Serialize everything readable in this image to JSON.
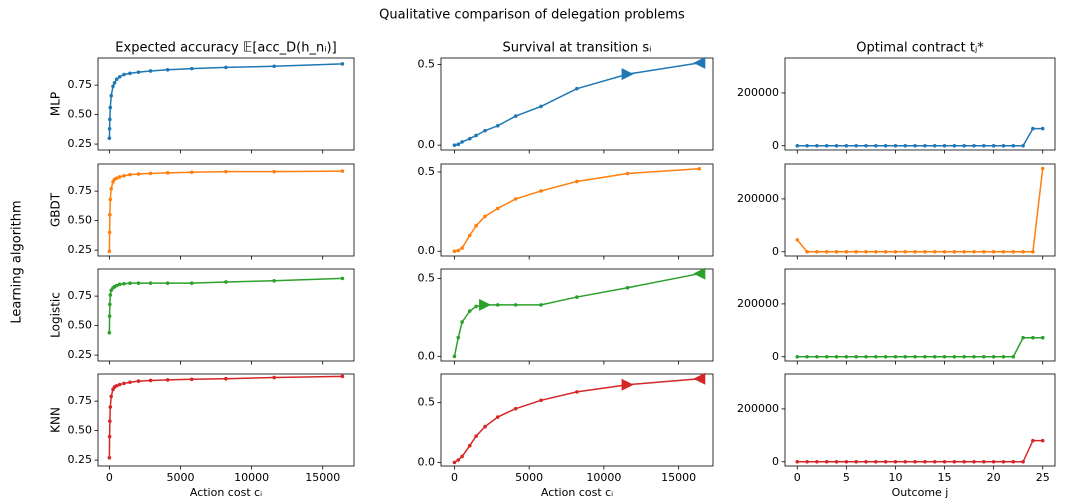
{
  "title": "Qualitative comparison of delegation problems",
  "ylabel": "Learning algorithm",
  "chart_data": [
    {
      "type": "line",
      "title": "Expected accuracy 𝔼[acc_D(h_nᵢ)]",
      "ylabel": "MLP",
      "color": "#1f77b4",
      "x": [
        0,
        16,
        32,
        64,
        128,
        256,
        362,
        512,
        724,
        1024,
        1448,
        2048,
        2896,
        4096,
        5793,
        8192,
        11585,
        16384
      ],
      "values": [
        0.3,
        0.38,
        0.46,
        0.56,
        0.66,
        0.74,
        0.77,
        0.8,
        0.82,
        0.84,
        0.85,
        0.86,
        0.87,
        0.88,
        0.89,
        0.9,
        0.91,
        0.93
      ],
      "xlim": [
        -800,
        17200
      ],
      "ylim": [
        0.2,
        0.98
      ],
      "xticks": [
        0,
        5000,
        10000,
        15000
      ],
      "show_xtick_labels": false,
      "yticks": [
        {
          "value": 0.25,
          "label": "0.25"
        },
        {
          "value": 0.5,
          "label": "0.50"
        },
        {
          "value": 0.75,
          "label": "0.75"
        }
      ]
    },
    {
      "type": "line",
      "title": "Survival at transition sᵢ",
      "color": "#1f77b4",
      "x": [
        0,
        256,
        512,
        1024,
        1448,
        2048,
        2896,
        4096,
        5793,
        8192,
        11585,
        16384
      ],
      "values": [
        0,
        0.005,
        0.02,
        0.04,
        0.06,
        0.09,
        0.12,
        0.18,
        0.24,
        0.35,
        0.44,
        0.51
      ],
      "markers": [
        {
          "index": 10,
          "shape": "triangle-right"
        },
        {
          "index": 11,
          "shape": "triangle-left"
        }
      ],
      "xlim": [
        -900,
        17300
      ],
      "ylim": [
        -0.03,
        0.54
      ],
      "xticks": [
        0,
        5000,
        10000,
        15000
      ],
      "show_xtick_labels": false,
      "yticks": [
        {
          "value": 0,
          "label": "0.0"
        },
        {
          "value": 0.5,
          "label": "0.5"
        }
      ]
    },
    {
      "type": "line",
      "title": "Optimal contract tⱼ*",
      "color": "#1f77b4",
      "x": [
        0,
        1,
        2,
        3,
        4,
        5,
        6,
        7,
        8,
        9,
        10,
        11,
        12,
        13,
        14,
        15,
        16,
        17,
        18,
        19,
        20,
        21,
        22,
        23,
        24,
        25
      ],
      "values": [
        0,
        0,
        0,
        0,
        0,
        0,
        0,
        0,
        0,
        0,
        0,
        0,
        0,
        0,
        0,
        0,
        0,
        0,
        0,
        0,
        0,
        0,
        0,
        0,
        65000,
        65000
      ],
      "xlim": [
        -1.25,
        26.25
      ],
      "ylim": [
        -16000,
        332000
      ],
      "xticks": [
        0,
        5,
        10,
        15,
        20,
        25
      ],
      "show_xtick_labels": false,
      "yticks": [
        0,
        200000
      ]
    },
    {
      "type": "line",
      "ylabel": "GBDT",
      "color": "#ff7f0e",
      "x": [
        0,
        16,
        32,
        64,
        128,
        256,
        362,
        512,
        724,
        1024,
        1448,
        2048,
        2896,
        4096,
        5793,
        8192,
        11585,
        16384
      ],
      "values": [
        0.24,
        0.4,
        0.55,
        0.68,
        0.77,
        0.83,
        0.85,
        0.86,
        0.87,
        0.88,
        0.89,
        0.895,
        0.9,
        0.905,
        0.91,
        0.915,
        0.915,
        0.92
      ],
      "xlim": [
        -800,
        17200
      ],
      "ylim": [
        0.2,
        0.98
      ],
      "xticks": [
        0,
        5000,
        10000,
        15000
      ],
      "show_xtick_labels": false,
      "yticks": [
        {
          "value": 0.25,
          "label": "0.25"
        },
        {
          "value": 0.5,
          "label": "0.50"
        },
        {
          "value": 0.75,
          "label": "0.75"
        }
      ]
    },
    {
      "type": "line",
      "color": "#ff7f0e",
      "x": [
        0,
        256,
        512,
        1024,
        1448,
        2048,
        2896,
        4096,
        5793,
        8192,
        11585,
        16384
      ],
      "values": [
        0,
        0.005,
        0.02,
        0.1,
        0.16,
        0.22,
        0.27,
        0.33,
        0.38,
        0.44,
        0.49,
        0.52
      ],
      "xlim": [
        -900,
        17300
      ],
      "ylim": [
        -0.03,
        0.55
      ],
      "xticks": [
        0,
        5000,
        10000,
        15000
      ],
      "show_xtick_labels": false,
      "yticks": [
        {
          "value": 0,
          "label": "0.0"
        },
        {
          "value": 0.5,
          "label": "0.5"
        }
      ]
    },
    {
      "type": "line",
      "color": "#ff7f0e",
      "x": [
        0,
        1,
        2,
        3,
        4,
        5,
        6,
        7,
        8,
        9,
        10,
        11,
        12,
        13,
        14,
        15,
        16,
        17,
        18,
        19,
        20,
        21,
        22,
        23,
        24,
        25
      ],
      "values": [
        45000,
        0,
        0,
        0,
        0,
        0,
        0,
        0,
        0,
        0,
        0,
        0,
        0,
        0,
        0,
        0,
        0,
        0,
        0,
        0,
        0,
        0,
        0,
        0,
        0,
        315000
      ],
      "xlim": [
        -1.25,
        26.25
      ],
      "ylim": [
        -16000,
        332000
      ],
      "xticks": [
        0,
        5,
        10,
        15,
        20,
        25
      ],
      "show_xtick_labels": false,
      "yticks": [
        0,
        200000
      ]
    },
    {
      "type": "line",
      "ylabel": "Logistic",
      "color": "#2ca02c",
      "x": [
        0,
        16,
        32,
        64,
        128,
        256,
        362,
        512,
        724,
        1024,
        1448,
        2048,
        2896,
        4096,
        5793,
        8192,
        11585,
        16384
      ],
      "values": [
        0.44,
        0.58,
        0.68,
        0.76,
        0.8,
        0.82,
        0.83,
        0.84,
        0.85,
        0.855,
        0.86,
        0.86,
        0.86,
        0.86,
        0.86,
        0.87,
        0.88,
        0.9
      ],
      "xlim": [
        -800,
        17200
      ],
      "ylim": [
        0.2,
        0.98
      ],
      "xticks": [
        0,
        5000,
        10000,
        15000
      ],
      "show_xtick_labels": false,
      "yticks": [
        {
          "value": 0.25,
          "label": "0.25"
        },
        {
          "value": 0.5,
          "label": "0.50"
        },
        {
          "value": 0.75,
          "label": "0.75"
        }
      ]
    },
    {
      "type": "line",
      "color": "#2ca02c",
      "x": [
        0,
        256,
        512,
        1024,
        1448,
        2048,
        2896,
        4096,
        5793,
        8192,
        11585,
        16384
      ],
      "values": [
        0,
        0.12,
        0.22,
        0.29,
        0.32,
        0.33,
        0.33,
        0.33,
        0.33,
        0.38,
        0.44,
        0.53
      ],
      "markers": [
        {
          "index": 5,
          "shape": "triangle-right"
        },
        {
          "index": 11,
          "shape": "triangle-left"
        }
      ],
      "xlim": [
        -900,
        17300
      ],
      "ylim": [
        -0.03,
        0.56
      ],
      "xticks": [
        0,
        5000,
        10000,
        15000
      ],
      "show_xtick_labels": false,
      "yticks": [
        {
          "value": 0,
          "label": "0.0"
        },
        {
          "value": 0.5,
          "label": "0.5"
        }
      ]
    },
    {
      "type": "line",
      "color": "#2ca02c",
      "x": [
        0,
        1,
        2,
        3,
        4,
        5,
        6,
        7,
        8,
        9,
        10,
        11,
        12,
        13,
        14,
        15,
        16,
        17,
        18,
        19,
        20,
        21,
        22,
        23,
        24,
        25
      ],
      "values": [
        0,
        0,
        0,
        0,
        0,
        0,
        0,
        0,
        0,
        0,
        0,
        0,
        0,
        0,
        0,
        0,
        0,
        0,
        0,
        0,
        0,
        0,
        0,
        72000,
        72000,
        72000
      ],
      "xlim": [
        -1.25,
        26.25
      ],
      "ylim": [
        -16000,
        332000
      ],
      "xticks": [
        0,
        5,
        10,
        15,
        20,
        25
      ],
      "show_xtick_labels": false,
      "yticks": [
        0,
        200000
      ]
    },
    {
      "type": "line",
      "ylabel": "KNN",
      "xlabel": "Action cost cᵢ",
      "color": "#d62728",
      "x": [
        0,
        16,
        32,
        64,
        128,
        256,
        362,
        512,
        724,
        1024,
        1448,
        2048,
        2896,
        4096,
        5793,
        8192,
        11585,
        16384
      ],
      "values": [
        0.27,
        0.45,
        0.58,
        0.7,
        0.79,
        0.85,
        0.87,
        0.88,
        0.89,
        0.9,
        0.91,
        0.92,
        0.925,
        0.93,
        0.935,
        0.94,
        0.95,
        0.96
      ],
      "xlim": [
        -800,
        17200
      ],
      "ylim": [
        0.2,
        0.98
      ],
      "xticks": [
        0,
        5000,
        10000,
        15000
      ],
      "show_xtick_labels": true,
      "yticks": [
        {
          "value": 0.25,
          "label": "0.25"
        },
        {
          "value": 0.5,
          "label": "0.50"
        },
        {
          "value": 0.75,
          "label": "0.75"
        }
      ]
    },
    {
      "type": "line",
      "xlabel": "Action cost cᵢ",
      "color": "#d62728",
      "x": [
        0,
        256,
        512,
        1024,
        1448,
        2048,
        2896,
        4096,
        5793,
        8192,
        11585,
        16384
      ],
      "values": [
        0,
        0.02,
        0.05,
        0.14,
        0.22,
        0.3,
        0.38,
        0.45,
        0.52,
        0.59,
        0.65,
        0.7
      ],
      "markers": [
        {
          "index": 10,
          "shape": "triangle-right"
        },
        {
          "index": 11,
          "shape": "triangle-left"
        }
      ],
      "xlim": [
        -900,
        17300
      ],
      "ylim": [
        -0.03,
        0.74
      ],
      "xticks": [
        0,
        5000,
        10000,
        15000
      ],
      "show_xtick_labels": true,
      "yticks": [
        {
          "value": 0,
          "label": "0.0"
        },
        {
          "value": 0.5,
          "label": "0.5"
        }
      ]
    },
    {
      "type": "line",
      "xlabel": "Outcome j",
      "color": "#d62728",
      "x": [
        0,
        1,
        2,
        3,
        4,
        5,
        6,
        7,
        8,
        9,
        10,
        11,
        12,
        13,
        14,
        15,
        16,
        17,
        18,
        19,
        20,
        21,
        22,
        23,
        24,
        25
      ],
      "values": [
        0,
        0,
        0,
        0,
        0,
        0,
        0,
        0,
        0,
        0,
        0,
        0,
        0,
        0,
        0,
        0,
        0,
        0,
        0,
        0,
        0,
        0,
        0,
        0,
        80000,
        80000
      ],
      "xlim": [
        -1.25,
        26.25
      ],
      "ylim": [
        -16000,
        332000
      ],
      "xticks": [
        0,
        5,
        10,
        15,
        20,
        25
      ],
      "show_xtick_labels": true,
      "yticks": [
        0,
        200000
      ]
    }
  ]
}
